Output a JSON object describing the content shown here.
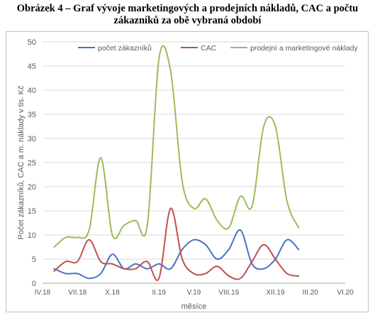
{
  "figure": {
    "title_line1": "Obrázek 4 – Graf vývoje marketingových a prodejních nákladů, CAC a počtu",
    "title_line2": "zákazníků za obě vybraná období"
  },
  "chart_data": {
    "type": "line",
    "title": "",
    "xlabel": "měsíce",
    "ylabel": "Počet zákazníků, CAC a m. náklady v tis. Kč",
    "x_ticks": [
      "IV.18",
      "VII.18",
      "X.18",
      "II.19",
      "V.19",
      "VIII.19",
      "XII.19",
      "III.20",
      "VI.20"
    ],
    "x": [
      "IV.18",
      "V.18",
      "VI.18",
      "VII.18",
      "VIII.18",
      "IX.18",
      "X.18",
      "XI.18",
      "XII.18",
      "I.19",
      "II.19",
      "III.19",
      "IV.19",
      "V.19",
      "VI.19",
      "VII.19",
      "VIII.19",
      "IX.19",
      "X.19",
      "XI.19",
      "XII.19",
      "I.20",
      "II.20",
      "III.20",
      "IV.20",
      "V.20",
      "VI.20"
    ],
    "ylim": [
      0,
      50
    ],
    "yticks": [
      0,
      5,
      10,
      15,
      20,
      25,
      30,
      35,
      40,
      45,
      50
    ],
    "grid": true,
    "legend_position": "top",
    "series": [
      {
        "name": "počet zákazníků",
        "color": "#4472c4",
        "values": [
          null,
          3,
          2,
          2,
          1,
          2,
          6,
          3,
          4,
          3,
          4,
          3,
          7,
          9,
          8,
          5,
          7,
          11,
          4,
          3,
          5,
          9,
          7,
          null,
          null,
          null,
          null
        ]
      },
      {
        "name": "CAC",
        "color": "#c0504d",
        "values": [
          null,
          2.5,
          4.5,
          4.5,
          9,
          4.5,
          4,
          3,
          3,
          4.5,
          1,
          15.5,
          5,
          2,
          2,
          3.5,
          1.5,
          1,
          4.5,
          8,
          5,
          2,
          1.5,
          null,
          null,
          null,
          null
        ]
      },
      {
        "name": "prodejní a marketingové náklady",
        "color": "#9bbb59",
        "values": [
          null,
          7.5,
          9.5,
          9.5,
          11,
          26,
          10,
          12,
          13,
          12,
          46.5,
          44,
          21,
          15.5,
          17.5,
          13,
          11.5,
          18,
          16,
          32.5,
          32.5,
          17,
          11.5,
          null,
          null,
          null,
          null
        ]
      }
    ]
  }
}
